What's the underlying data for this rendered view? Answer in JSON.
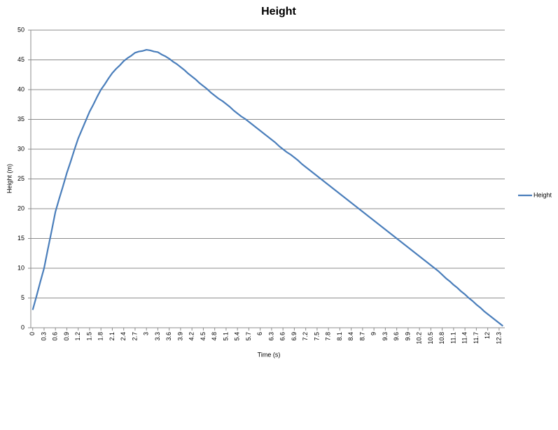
{
  "chart_data": {
    "type": "line",
    "title": "Height",
    "x_label": "Time (s)",
    "y_label": "Height (m)",
    "categories": [
      "0",
      null,
      null,
      "0.3",
      null,
      null,
      "0.6",
      null,
      null,
      "0.9",
      null,
      null,
      "1.2",
      null,
      null,
      "1.5",
      null,
      null,
      "1.8",
      null,
      null,
      "2.1",
      null,
      null,
      "2.4",
      null,
      null,
      "2.7",
      null,
      null,
      "3",
      null,
      null,
      "3.3",
      null,
      null,
      "3.6",
      null,
      null,
      "3.9",
      null,
      null,
      "4.2",
      null,
      null,
      "4.5",
      null,
      null,
      "4.8",
      null,
      null,
      "5.1",
      null,
      null,
      "5.4",
      null,
      null,
      "5.7",
      null,
      null,
      "6",
      null,
      null,
      "6.3",
      null,
      null,
      "6.6",
      null,
      null,
      "6.9",
      null,
      null,
      "7.2",
      null,
      null,
      "7.5",
      null,
      null,
      "7.8",
      null,
      null,
      "8.1",
      null,
      null,
      "8.4",
      null,
      null,
      "8.7",
      null,
      null,
      "9",
      null,
      null,
      "9.3",
      null,
      null,
      "9.6",
      null,
      null,
      "9.9",
      null,
      null,
      "10.2",
      null,
      null,
      "10.5",
      null,
      null,
      "10.8",
      null,
      null,
      "11.1",
      null,
      null,
      "11.4",
      null,
      null,
      "11.7",
      null,
      null,
      "12",
      null,
      null,
      "12.3",
      null
    ],
    "series": [
      {
        "name": "Height",
        "color": "#4a7ebb",
        "values": [
          3,
          5.3,
          7.7,
          10,
          13.2,
          16.3,
          19.5,
          21.7,
          23.8,
          26,
          27.9,
          29.9,
          31.8,
          33.3,
          34.8,
          36.3,
          37.5,
          38.8,
          40,
          40.9,
          41.9,
          42.8,
          43.5,
          44.1,
          44.8,
          45.3,
          45.7,
          46.2,
          46.4,
          46.5,
          46.7,
          46.6,
          46.4,
          46.3,
          45.9,
          45.6,
          45.2,
          44.7,
          44.3,
          43.8,
          43.3,
          42.7,
          42.2,
          41.7,
          41.1,
          40.6,
          40.1,
          39.5,
          39,
          38.5,
          38.1,
          37.6,
          37.1,
          36.5,
          36,
          35.5,
          35.1,
          34.6,
          34.1,
          33.6,
          33.1,
          32.6,
          32.1,
          31.6,
          31.1,
          30.5,
          30,
          29.5,
          29.1,
          28.6,
          28.1,
          27.5,
          27,
          26.5,
          26,
          25.5,
          25,
          24.5,
          24,
          23.5,
          23,
          22.5,
          22,
          21.5,
          21,
          20.5,
          20,
          19.5,
          19,
          18.5,
          18,
          17.5,
          17,
          16.5,
          16,
          15.5,
          15,
          14.5,
          14,
          13.5,
          13,
          12.5,
          12,
          11.5,
          11,
          10.5,
          10,
          9.5,
          8.9,
          8.3,
          7.8,
          7.2,
          6.7,
          6.1,
          5.6,
          5,
          4.5,
          3.9,
          3.4,
          2.8,
          2.3,
          1.8,
          1.3,
          0.8,
          0.3
        ]
      }
    ],
    "ylim": [
      0,
      50
    ],
    "yticks": [
      0,
      5,
      10,
      15,
      20,
      25,
      30,
      35,
      40,
      45,
      50
    ],
    "grid": true,
    "legend": "right"
  }
}
